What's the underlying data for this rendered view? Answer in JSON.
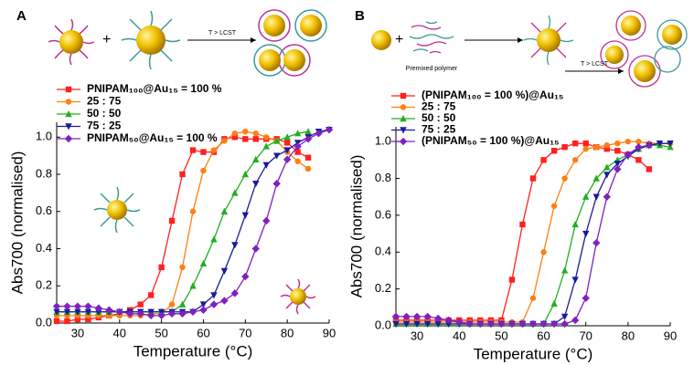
{
  "chart_data": [
    {
      "type": "line",
      "panel_label": "A",
      "illustration_label": "T > LCST",
      "xlabel": "Temperature (°C)",
      "ylabel": "Abs700 (normalised)",
      "xlim": [
        25,
        90
      ],
      "ylim": [
        0,
        1.08
      ],
      "xticks": [
        30,
        40,
        50,
        60,
        70,
        80,
        90
      ],
      "yticks": [
        {
          "value": 0,
          "label": "0.0"
        },
        {
          "value": 0.2,
          "label": "0.2"
        },
        {
          "value": 0.4,
          "label": "0.4"
        },
        {
          "value": 0.6,
          "label": "0.6"
        },
        {
          "value": 0.8,
          "label": "0.8"
        },
        {
          "value": 1.0,
          "label": "1.0"
        }
      ],
      "x": [
        25,
        27.5,
        30,
        32.5,
        35,
        37.5,
        40,
        42.5,
        45,
        47.5,
        50,
        52.5,
        55,
        57.5,
        60,
        62.5,
        65,
        67.5,
        70,
        72.5,
        75,
        77.5,
        80,
        82.5,
        85,
        87.5,
        90
      ],
      "series": [
        {
          "name": "PNIPAM₁₀₀@Au₁₅ = 100 %",
          "color": "#ff2020",
          "marker": "square",
          "values": [
            0.01,
            0.01,
            0.02,
            0.02,
            0.03,
            0.04,
            0.05,
            0.07,
            0.1,
            0.15,
            0.3,
            0.55,
            0.8,
            0.93,
            0.92,
            0.92,
            0.99,
            1.0,
            0.99,
            0.99,
            0.99,
            0.99,
            0.97,
            0.92,
            0.89,
            null,
            null
          ]
        },
        {
          "name": "25 : 75",
          "color": "#ff7f10",
          "marker": "circle",
          "values": [
            0.04,
            0.04,
            0.04,
            0.04,
            0.04,
            0.04,
            0.04,
            0.04,
            0.04,
            0.05,
            0.05,
            0.1,
            0.3,
            0.6,
            0.82,
            0.93,
            0.98,
            1.02,
            1.03,
            1.02,
            1.0,
            0.98,
            0.92,
            0.87,
            0.83,
            null,
            null
          ]
        },
        {
          "name": "50 : 50",
          "color": "#20b020",
          "marker": "triangle-up",
          "values": [
            0.06,
            0.06,
            0.06,
            0.06,
            0.06,
            0.06,
            0.06,
            0.06,
            0.06,
            0.06,
            0.06,
            0.06,
            0.1,
            0.2,
            0.32,
            0.45,
            0.6,
            0.7,
            0.8,
            0.88,
            0.95,
            0.98,
            1.0,
            1.02,
            1.03,
            null,
            null
          ]
        },
        {
          "name": "75 : 25",
          "color": "#1a1aa0",
          "marker": "triangle-down",
          "values": [
            0.06,
            0.06,
            0.06,
            0.06,
            0.06,
            0.06,
            0.06,
            0.06,
            0.06,
            0.06,
            0.06,
            0.06,
            0.06,
            0.06,
            0.1,
            0.15,
            0.28,
            0.42,
            0.58,
            0.75,
            0.85,
            0.9,
            0.93,
            0.97,
            1.0,
            1.03,
            1.04
          ]
        },
        {
          "name": "PNIPAM₅₀@Au₁₅ = 100 %",
          "color": "#8020c0",
          "marker": "diamond",
          "values": [
            0.09,
            0.09,
            0.09,
            0.09,
            0.08,
            0.07,
            0.06,
            0.05,
            0.05,
            0.04,
            0.04,
            0.05,
            0.05,
            0.06,
            0.07,
            0.1,
            0.12,
            0.16,
            0.25,
            0.4,
            0.55,
            0.75,
            0.88,
            0.95,
            0.99,
            1.02,
            1.04
          ]
        }
      ]
    },
    {
      "type": "line",
      "panel_label": "B",
      "illustration_label": "T > LCST",
      "illustration_note": "Premixed polymer",
      "xlabel": "Temperature (°C)",
      "ylabel": "Abs700 (normalised)",
      "xlim": [
        25,
        90
      ],
      "ylim": [
        0,
        1.08
      ],
      "xticks": [
        30,
        40,
        50,
        60,
        70,
        80,
        90
      ],
      "yticks": [
        {
          "value": 0,
          "label": "0.0"
        },
        {
          "value": 0.2,
          "label": "0.2"
        },
        {
          "value": 0.4,
          "label": "0.4"
        },
        {
          "value": 0.6,
          "label": "0.6"
        },
        {
          "value": 0.8,
          "label": "0.8"
        },
        {
          "value": 1.0,
          "label": "1.0"
        }
      ],
      "x": [
        25,
        27.5,
        30,
        32.5,
        35,
        37.5,
        40,
        42.5,
        45,
        47.5,
        50,
        52.5,
        55,
        57.5,
        60,
        62.5,
        65,
        67.5,
        70,
        72.5,
        75,
        77.5,
        80,
        82.5,
        85,
        87.5,
        90
      ],
      "series": [
        {
          "name": "(PNIPAM₁₀₀ = 100 %)@Au₁₅",
          "color": "#ff2020",
          "marker": "square",
          "values": [
            0.03,
            0.03,
            0.03,
            0.03,
            0.03,
            0.03,
            0.03,
            0.03,
            0.03,
            0.03,
            0.03,
            0.25,
            0.55,
            0.8,
            0.9,
            0.95,
            0.97,
            0.99,
            0.99,
            0.97,
            0.96,
            0.95,
            0.93,
            0.9,
            0.85,
            null,
            null
          ]
        },
        {
          "name": "25 : 75",
          "color": "#ff7f10",
          "marker": "circle",
          "values": [
            0.02,
            0.02,
            0.02,
            0.02,
            0.02,
            0.02,
            0.02,
            0.02,
            0.02,
            0.02,
            0.02,
            0.02,
            0.02,
            0.15,
            0.4,
            0.65,
            0.8,
            0.9,
            0.96,
            0.97,
            0.98,
            0.99,
            1.0,
            1.0,
            0.99,
            0.99,
            0.99
          ]
        },
        {
          "name": "50 : 50",
          "color": "#20b020",
          "marker": "triangle-up",
          "values": [
            0.01,
            0.01,
            0.01,
            0.01,
            0.01,
            0.01,
            0.01,
            0.01,
            0.01,
            0.01,
            0.01,
            0.01,
            0.01,
            0.01,
            0.01,
            0.12,
            0.3,
            0.55,
            0.7,
            0.8,
            0.86,
            0.9,
            0.93,
            0.96,
            0.98,
            0.98,
            0.97
          ]
        },
        {
          "name": "75 : 25",
          "color": "#1a1aa0",
          "marker": "triangle-down",
          "values": [
            0.01,
            0.01,
            0.01,
            0.01,
            0.01,
            0.01,
            0.01,
            0.01,
            0.01,
            0.01,
            0.01,
            0.01,
            0.01,
            0.01,
            0.01,
            0.01,
            0.05,
            0.25,
            0.5,
            0.7,
            0.82,
            0.88,
            0.92,
            0.96,
            0.98,
            0.99,
            0.99
          ]
        },
        {
          "name": "(PNIPAM₅₀ = 100 %)@Au₁₅",
          "color": "#8020c0",
          "marker": "diamond",
          "values": [
            0.05,
            0.05,
            0.05,
            0.05,
            0.04,
            0.03,
            0.02,
            0.01,
            0.01,
            0.01,
            0.01,
            0.01,
            0.01,
            0.01,
            0.01,
            0.01,
            0.01,
            0.03,
            0.15,
            0.45,
            0.7,
            0.85,
            0.93,
            0.97,
            0.98,
            null,
            null
          ]
        }
      ]
    }
  ]
}
